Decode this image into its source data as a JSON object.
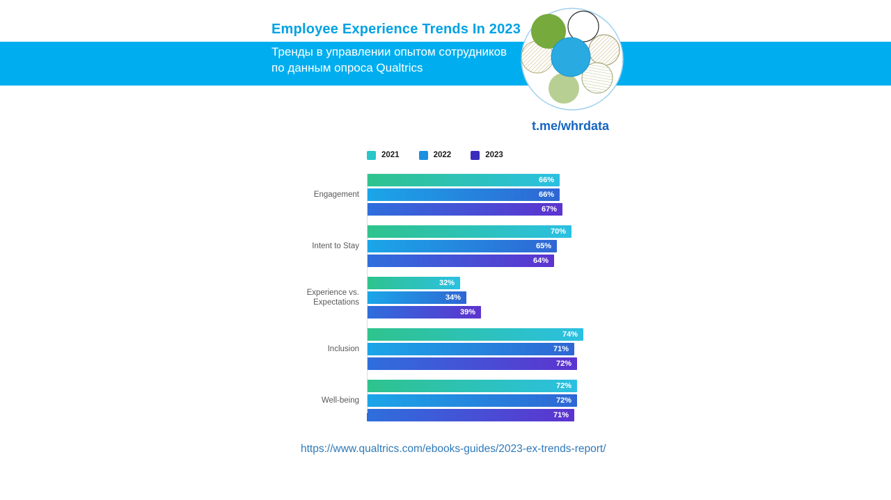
{
  "header": {
    "title": "Employee Experience Trends In 2023",
    "subtitle_lines": [
      "Тренды в управлении опытом сотрудников",
      "по данным опроса Qualtrics"
    ],
    "telegram": "t.me/whrdata",
    "band_color": "#00aeef",
    "title_color": "#00a2e2"
  },
  "logo": {
    "name": "whrdata-flower-logo",
    "center_color": "#29abe2",
    "petal_green": "#76aa3c",
    "petal_light_green": "#b8cf93"
  },
  "chart_data": {
    "type": "bar",
    "orientation": "horizontal",
    "title": "",
    "categories": [
      "Engagement",
      "Intent to Stay",
      "Experience vs. Expectations",
      "Inclusion",
      "Well-being"
    ],
    "series": [
      {
        "name": "2021",
        "values": [
          66,
          70,
          32,
          74,
          72
        ],
        "legend_color": "#29c5c9",
        "gradient": [
          "#2fc38d",
          "#2bc0e2"
        ]
      },
      {
        "name": "2022",
        "values": [
          66,
          65,
          34,
          71,
          72
        ],
        "legend_color": "#1b90e0",
        "gradient": [
          "#1ba6e8",
          "#2f66d4"
        ]
      },
      {
        "name": "2023",
        "values": [
          67,
          64,
          39,
          72,
          71
        ],
        "legend_color": "#3a2dbd",
        "gradient": [
          "#2e6fdc",
          "#5d33cf"
        ]
      }
    ],
    "value_suffix": "%",
    "xlim": [
      0,
      100
    ],
    "legend_position": "top",
    "grid": false
  },
  "footer": {
    "source_url": "https://www.qualtrics.com/ebooks-guides/2023-ex-trends-report/"
  }
}
